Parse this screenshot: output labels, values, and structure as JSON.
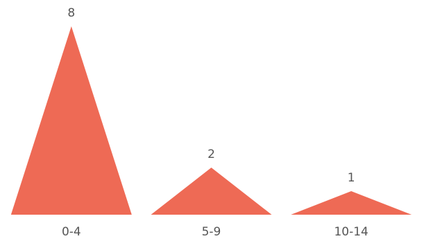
{
  "chart_data": {
    "type": "bar",
    "mark_shape": "triangle",
    "categories": [
      "0-4",
      "5-9",
      "10-14"
    ],
    "values": [
      8,
      2,
      1
    ],
    "ylim": [
      0,
      8
    ],
    "grid": false,
    "title": "",
    "xlabel": "",
    "ylabel": ""
  },
  "colors": {
    "bar": "#ee6a55",
    "text": "#555555"
  }
}
